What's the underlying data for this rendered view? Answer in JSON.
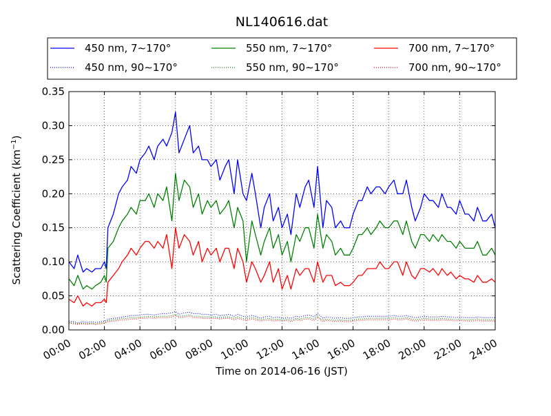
{
  "chart_data": {
    "type": "line",
    "title": "NL140616.dat",
    "xlabel": "Time on 2014-06-16 (JST)",
    "ylabel": "Scattering Coefficient (km",
    "ylabel_sup": "−1",
    "ylabel_close": ")",
    "x_unit": "hours",
    "xlim": [
      0,
      24
    ],
    "ylim": [
      0,
      0.35
    ],
    "x_ticks": [
      0,
      2,
      4,
      6,
      8,
      10,
      12,
      14,
      16,
      18,
      20,
      22,
      24
    ],
    "x_tick_labels": [
      "00:00",
      "02:00",
      "04:00",
      "06:00",
      "08:00",
      "10:00",
      "12:00",
      "14:00",
      "16:00",
      "18:00",
      "20:00",
      "22:00",
      "24:00"
    ],
    "y_ticks": [
      0,
      0.05,
      0.1,
      0.15,
      0.2,
      0.25,
      0.3,
      0.35
    ],
    "y_tick_labels": [
      "0.00",
      "0.05",
      "0.10",
      "0.15",
      "0.20",
      "0.25",
      "0.30",
      "0.35"
    ],
    "grid": true,
    "legend_position": "top",
    "series": [
      {
        "name": "450 nm, 7∼170°",
        "color": "#0000ff",
        "style": "solid",
        "x": [
          0,
          0.3,
          0.5,
          0.8,
          1,
          1.3,
          1.5,
          1.8,
          2,
          2.1,
          2.2,
          2.5,
          2.8,
          3,
          3.3,
          3.5,
          3.8,
          4,
          4.3,
          4.5,
          4.8,
          5,
          5.3,
          5.5,
          5.8,
          6,
          6.2,
          6.5,
          6.8,
          7,
          7.3,
          7.5,
          7.8,
          8,
          8.3,
          8.5,
          8.8,
          9,
          9.3,
          9.5,
          9.8,
          10,
          10.3,
          10.5,
          10.8,
          11,
          11.3,
          11.5,
          11.8,
          12,
          12.3,
          12.5,
          12.8,
          13,
          13.3,
          13.5,
          13.8,
          14,
          14.3,
          14.5,
          14.8,
          15,
          15.3,
          15.5,
          15.8,
          16,
          16.3,
          16.5,
          16.8,
          17,
          17.3,
          17.5,
          17.8,
          18,
          18.3,
          18.5,
          18.8,
          19,
          19.3,
          19.5,
          19.8,
          20,
          20.3,
          20.5,
          20.8,
          21,
          21.3,
          21.5,
          21.8,
          22,
          22.3,
          22.5,
          22.8,
          23,
          23.3,
          23.5,
          23.8,
          24
        ],
        "y": [
          0.1,
          0.09,
          0.11,
          0.085,
          0.09,
          0.085,
          0.09,
          0.09,
          0.1,
          0.09,
          0.15,
          0.17,
          0.2,
          0.21,
          0.22,
          0.24,
          0.23,
          0.25,
          0.26,
          0.27,
          0.25,
          0.27,
          0.28,
          0.27,
          0.29,
          0.32,
          0.26,
          0.28,
          0.3,
          0.26,
          0.27,
          0.25,
          0.25,
          0.24,
          0.25,
          0.22,
          0.24,
          0.25,
          0.2,
          0.25,
          0.2,
          0.19,
          0.23,
          0.2,
          0.15,
          0.18,
          0.2,
          0.16,
          0.18,
          0.15,
          0.17,
          0.14,
          0.2,
          0.18,
          0.21,
          0.22,
          0.18,
          0.24,
          0.15,
          0.19,
          0.18,
          0.15,
          0.16,
          0.15,
          0.15,
          0.17,
          0.19,
          0.19,
          0.21,
          0.2,
          0.21,
          0.21,
          0.2,
          0.21,
          0.22,
          0.2,
          0.2,
          0.22,
          0.18,
          0.16,
          0.18,
          0.2,
          0.19,
          0.19,
          0.18,
          0.2,
          0.18,
          0.18,
          0.17,
          0.19,
          0.17,
          0.17,
          0.16,
          0.18,
          0.16,
          0.16,
          0.17,
          0.15
        ],
        "dotted": [
          0.013,
          0.012,
          0.01,
          0.012,
          0.011,
          0.012,
          0.011,
          0.012,
          0.013,
          0.014,
          0.016,
          0.017,
          0.018,
          0.019,
          0.02,
          0.021,
          0.021,
          0.022,
          0.023,
          0.023,
          0.022,
          0.023,
          0.024,
          0.024,
          0.025,
          0.027,
          0.023,
          0.025,
          0.026,
          0.024,
          0.024,
          0.023,
          0.023,
          0.022,
          0.023,
          0.021,
          0.022,
          0.023,
          0.02,
          0.023,
          0.02,
          0.019,
          0.021,
          0.02,
          0.017,
          0.019,
          0.02,
          0.018,
          0.019,
          0.017,
          0.018,
          0.017,
          0.02,
          0.019,
          0.021,
          0.022,
          0.019,
          0.024,
          0.017,
          0.019,
          0.018,
          0.017,
          0.018,
          0.017,
          0.017,
          0.018,
          0.019,
          0.019,
          0.02,
          0.02,
          0.02,
          0.02,
          0.02,
          0.02,
          0.021,
          0.02,
          0.02,
          0.021,
          0.019,
          0.018,
          0.019,
          0.02,
          0.019,
          0.019,
          0.019,
          0.02,
          0.019,
          0.019,
          0.018,
          0.019,
          0.018,
          0.018,
          0.018,
          0.019,
          0.018,
          0.018,
          0.018,
          0.018
        ]
      },
      {
        "name": "550 nm, 7∼170°",
        "color": "#008000",
        "style": "solid",
        "x": [
          0,
          0.3,
          0.5,
          0.8,
          1,
          1.3,
          1.5,
          1.8,
          2,
          2.1,
          2.2,
          2.5,
          2.8,
          3,
          3.3,
          3.5,
          3.8,
          4,
          4.3,
          4.5,
          4.8,
          5,
          5.3,
          5.5,
          5.8,
          6,
          6.2,
          6.5,
          6.8,
          7,
          7.3,
          7.5,
          7.8,
          8,
          8.3,
          8.5,
          8.8,
          9,
          9.3,
          9.5,
          9.8,
          10,
          10.3,
          10.5,
          10.8,
          11,
          11.3,
          11.5,
          11.8,
          12,
          12.3,
          12.5,
          12.8,
          13,
          13.3,
          13.5,
          13.8,
          14,
          14.3,
          14.5,
          14.8,
          15,
          15.3,
          15.5,
          15.8,
          16,
          16.3,
          16.5,
          16.8,
          17,
          17.3,
          17.5,
          17.8,
          18,
          18.3,
          18.5,
          18.8,
          19,
          19.3,
          19.5,
          19.8,
          20,
          20.3,
          20.5,
          20.8,
          21,
          21.3,
          21.5,
          21.8,
          22,
          22.3,
          22.5,
          22.8,
          23,
          23.3,
          23.5,
          23.8,
          24
        ],
        "y": [
          0.075,
          0.065,
          0.08,
          0.06,
          0.065,
          0.06,
          0.065,
          0.07,
          0.08,
          0.07,
          0.12,
          0.13,
          0.15,
          0.16,
          0.17,
          0.18,
          0.17,
          0.19,
          0.19,
          0.2,
          0.18,
          0.2,
          0.19,
          0.21,
          0.16,
          0.23,
          0.19,
          0.22,
          0.21,
          0.18,
          0.2,
          0.17,
          0.19,
          0.18,
          0.19,
          0.17,
          0.18,
          0.19,
          0.15,
          0.18,
          0.16,
          0.1,
          0.16,
          0.14,
          0.11,
          0.13,
          0.15,
          0.12,
          0.14,
          0.11,
          0.13,
          0.1,
          0.14,
          0.13,
          0.15,
          0.15,
          0.12,
          0.17,
          0.12,
          0.14,
          0.13,
          0.11,
          0.12,
          0.11,
          0.11,
          0.12,
          0.14,
          0.14,
          0.15,
          0.14,
          0.15,
          0.16,
          0.15,
          0.15,
          0.16,
          0.16,
          0.14,
          0.16,
          0.13,
          0.12,
          0.14,
          0.14,
          0.13,
          0.14,
          0.13,
          0.14,
          0.13,
          0.13,
          0.12,
          0.13,
          0.12,
          0.12,
          0.12,
          0.13,
          0.11,
          0.11,
          0.12,
          0.11
        ],
        "dotted": [
          0.011,
          0.01,
          0.009,
          0.01,
          0.009,
          0.01,
          0.009,
          0.01,
          0.011,
          0.012,
          0.014,
          0.015,
          0.016,
          0.017,
          0.017,
          0.018,
          0.018,
          0.019,
          0.019,
          0.02,
          0.019,
          0.02,
          0.02,
          0.02,
          0.021,
          0.023,
          0.02,
          0.021,
          0.022,
          0.02,
          0.02,
          0.019,
          0.019,
          0.019,
          0.019,
          0.018,
          0.019,
          0.019,
          0.017,
          0.019,
          0.017,
          0.016,
          0.018,
          0.017,
          0.015,
          0.016,
          0.017,
          0.015,
          0.016,
          0.015,
          0.016,
          0.014,
          0.017,
          0.016,
          0.018,
          0.018,
          0.016,
          0.02,
          0.014,
          0.016,
          0.015,
          0.014,
          0.015,
          0.014,
          0.014,
          0.015,
          0.016,
          0.016,
          0.017,
          0.017,
          0.017,
          0.017,
          0.017,
          0.017,
          0.018,
          0.017,
          0.017,
          0.018,
          0.016,
          0.015,
          0.016,
          0.017,
          0.016,
          0.016,
          0.016,
          0.017,
          0.016,
          0.016,
          0.015,
          0.016,
          0.015,
          0.015,
          0.015,
          0.016,
          0.015,
          0.015,
          0.015,
          0.015
        ]
      },
      {
        "name": "700 nm, 7∼170°",
        "color": "#ff0000",
        "style": "solid",
        "x": [
          0,
          0.3,
          0.5,
          0.8,
          1,
          1.3,
          1.5,
          1.8,
          2,
          2.1,
          2.2,
          2.5,
          2.8,
          3,
          3.3,
          3.5,
          3.8,
          4,
          4.3,
          4.5,
          4.8,
          5,
          5.3,
          5.5,
          5.8,
          6,
          6.2,
          6.5,
          6.8,
          7,
          7.3,
          7.5,
          7.8,
          8,
          8.3,
          8.5,
          8.8,
          9,
          9.3,
          9.5,
          9.8,
          10,
          10.3,
          10.5,
          10.8,
          11,
          11.3,
          11.5,
          11.8,
          12,
          12.3,
          12.5,
          12.8,
          13,
          13.3,
          13.5,
          13.8,
          14,
          14.3,
          14.5,
          14.8,
          15,
          15.3,
          15.5,
          15.8,
          16,
          16.3,
          16.5,
          16.8,
          17,
          17.3,
          17.5,
          17.8,
          18,
          18.3,
          18.5,
          18.8,
          19,
          19.3,
          19.5,
          19.8,
          20,
          20.3,
          20.5,
          20.8,
          21,
          21.3,
          21.5,
          21.8,
          22,
          22.3,
          22.5,
          22.8,
          23,
          23.3,
          23.5,
          23.8,
          24
        ],
        "y": [
          0.045,
          0.04,
          0.05,
          0.035,
          0.04,
          0.035,
          0.04,
          0.04,
          0.045,
          0.04,
          0.07,
          0.08,
          0.09,
          0.1,
          0.11,
          0.12,
          0.11,
          0.12,
          0.13,
          0.13,
          0.12,
          0.13,
          0.12,
          0.14,
          0.09,
          0.15,
          0.12,
          0.14,
          0.13,
          0.11,
          0.13,
          0.1,
          0.12,
          0.11,
          0.12,
          0.1,
          0.12,
          0.12,
          0.09,
          0.12,
          0.1,
          0.07,
          0.1,
          0.09,
          0.07,
          0.08,
          0.1,
          0.07,
          0.09,
          0.06,
          0.08,
          0.06,
          0.09,
          0.08,
          0.09,
          0.09,
          0.07,
          0.1,
          0.07,
          0.08,
          0.08,
          0.065,
          0.07,
          0.065,
          0.065,
          0.07,
          0.08,
          0.08,
          0.09,
          0.09,
          0.09,
          0.1,
          0.09,
          0.09,
          0.1,
          0.1,
          0.08,
          0.1,
          0.08,
          0.075,
          0.09,
          0.09,
          0.085,
          0.09,
          0.08,
          0.09,
          0.08,
          0.085,
          0.075,
          0.08,
          0.075,
          0.075,
          0.07,
          0.08,
          0.07,
          0.07,
          0.075,
          0.07
        ],
        "dotted": [
          0.01,
          0.009,
          0.008,
          0.009,
          0.008,
          0.009,
          0.008,
          0.009,
          0.01,
          0.011,
          0.012,
          0.013,
          0.014,
          0.015,
          0.015,
          0.016,
          0.016,
          0.017,
          0.017,
          0.018,
          0.017,
          0.018,
          0.018,
          0.018,
          0.019,
          0.021,
          0.018,
          0.019,
          0.02,
          0.018,
          0.018,
          0.017,
          0.017,
          0.017,
          0.017,
          0.016,
          0.017,
          0.017,
          0.015,
          0.017,
          0.015,
          0.014,
          0.016,
          0.015,
          0.013,
          0.014,
          0.015,
          0.013,
          0.014,
          0.013,
          0.014,
          0.012,
          0.015,
          0.014,
          0.016,
          0.016,
          0.014,
          0.018,
          0.012,
          0.014,
          0.013,
          0.012,
          0.013,
          0.012,
          0.012,
          0.013,
          0.014,
          0.014,
          0.015,
          0.015,
          0.015,
          0.015,
          0.015,
          0.015,
          0.016,
          0.015,
          0.015,
          0.016,
          0.014,
          0.013,
          0.014,
          0.015,
          0.014,
          0.014,
          0.014,
          0.015,
          0.014,
          0.014,
          0.013,
          0.014,
          0.013,
          0.013,
          0.013,
          0.014,
          0.013,
          0.013,
          0.013,
          0.013
        ]
      }
    ],
    "legend": [
      {
        "label": "450 nm, 7∼170°",
        "color": "#0000ff",
        "style": "solid"
      },
      {
        "label": "550 nm, 7∼170°",
        "color": "#008000",
        "style": "solid"
      },
      {
        "label": "700 nm, 7∼170°",
        "color": "#ff0000",
        "style": "solid"
      },
      {
        "label": "450 nm, 90∼170°",
        "color": "#0000ff",
        "style": "dotted"
      },
      {
        "label": "550 nm, 90∼170°",
        "color": "#008000",
        "style": "dotted"
      },
      {
        "label": "700 nm, 90∼170°",
        "color": "#ff0000",
        "style": "dotted"
      }
    ]
  }
}
